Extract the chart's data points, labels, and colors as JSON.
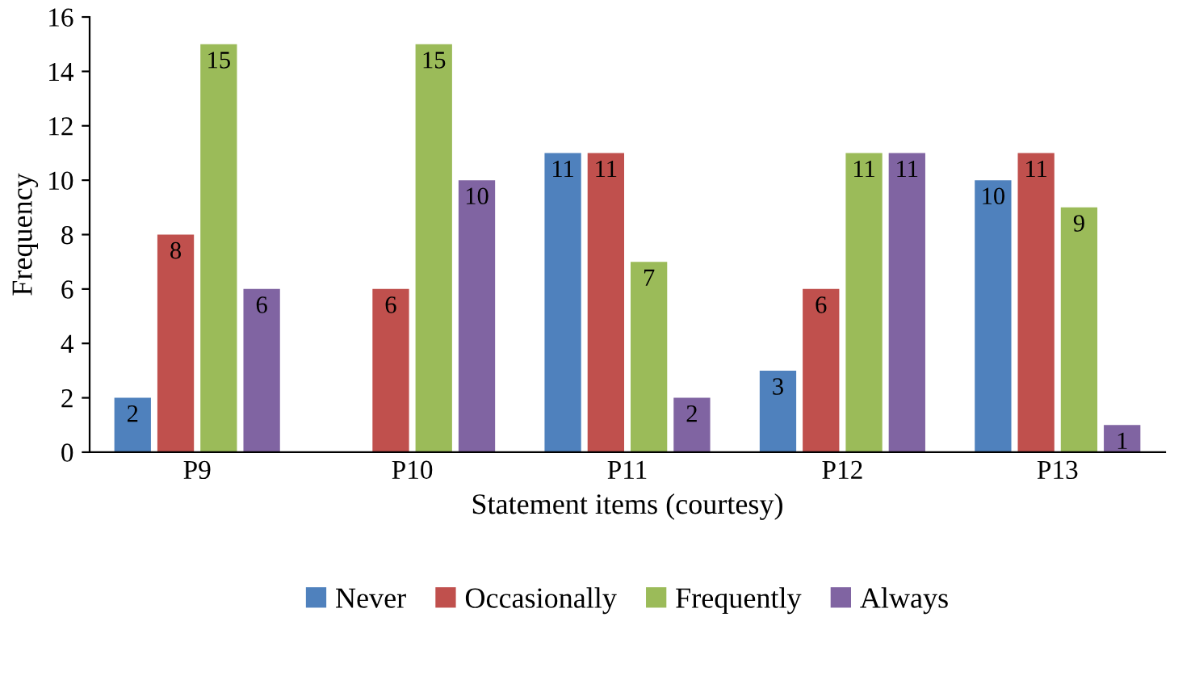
{
  "chart_data": {
    "type": "bar",
    "xlabel": "Statement items (courtesy)",
    "ylabel": "Frequency",
    "categories": [
      "P9",
      "P10",
      "P11",
      "P12",
      "P13"
    ],
    "series": [
      {
        "name": "Never",
        "color": "#4f81bd",
        "values": [
          2,
          null,
          11,
          3,
          10
        ]
      },
      {
        "name": "Occasionally",
        "color": "#c0504d",
        "values": [
          8,
          6,
          11,
          6,
          11
        ]
      },
      {
        "name": "Frequently",
        "color": "#9bbb59",
        "values": [
          15,
          15,
          7,
          11,
          9
        ]
      },
      {
        "name": "Always",
        "color": "#8064a2",
        "values": [
          6,
          10,
          2,
          11,
          1
        ]
      }
    ],
    "ylim": [
      0,
      16
    ],
    "yticks": [
      0,
      2,
      4,
      6,
      8,
      10,
      12,
      14,
      16
    ],
    "data_labels": true,
    "legend": "bottom",
    "grid": false
  }
}
